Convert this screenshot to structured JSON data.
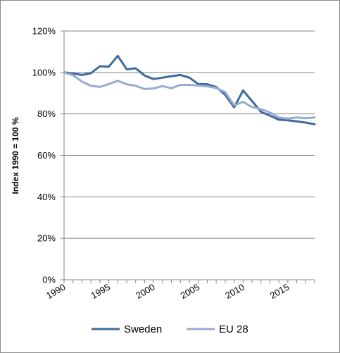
{
  "chart_data": {
    "type": "line",
    "ylabel": "Index 1990  = 100 %",
    "xlim": [
      1990,
      2018
    ],
    "ylim": [
      0,
      120
    ],
    "y_ticks": [
      0,
      20,
      40,
      60,
      80,
      100,
      120
    ],
    "y_tick_labels": [
      "0%",
      "20%",
      "40%",
      "60%",
      "80%",
      "100%",
      "120%"
    ],
    "x_ticks": [
      1990,
      1995,
      2000,
      2005,
      2010,
      2015
    ],
    "x_tick_labels": [
      "1990",
      "1995",
      "2000",
      "2005",
      "2010",
      "2015"
    ],
    "grid": "horizontal",
    "legend_position": "bottom",
    "x": [
      1990,
      1991,
      1992,
      1993,
      1994,
      1995,
      1996,
      1997,
      1998,
      1999,
      2000,
      2001,
      2002,
      2003,
      2004,
      2005,
      2006,
      2007,
      2008,
      2009,
      2010,
      2011,
      2012,
      2013,
      2014,
      2015,
      2016,
      2017,
      2018
    ],
    "series": [
      {
        "name": "Sweden",
        "color": "#3d6a9e",
        "values": [
          100,
          99.5,
          98.8,
          99.6,
          103,
          102.8,
          108,
          101.5,
          102,
          98.5,
          96.8,
          97.5,
          98.2,
          98.8,
          97.5,
          94.4,
          94.3,
          93,
          89.2,
          83.2,
          91.3,
          86.2,
          81,
          79.2,
          77.2,
          76.9,
          76.4,
          75.8,
          75
        ]
      },
      {
        "name": "EU 28",
        "color": "#94acd4",
        "values": [
          100,
          98.7,
          95.6,
          93.6,
          93,
          94.4,
          96,
          94.3,
          93.6,
          92,
          92.3,
          93.4,
          92.4,
          94,
          94,
          93.7,
          93.3,
          92.5,
          90.5,
          84.2,
          85.8,
          83.3,
          82.3,
          80.7,
          78.3,
          77.7,
          78.3,
          77.9,
          78.3
        ]
      }
    ]
  }
}
